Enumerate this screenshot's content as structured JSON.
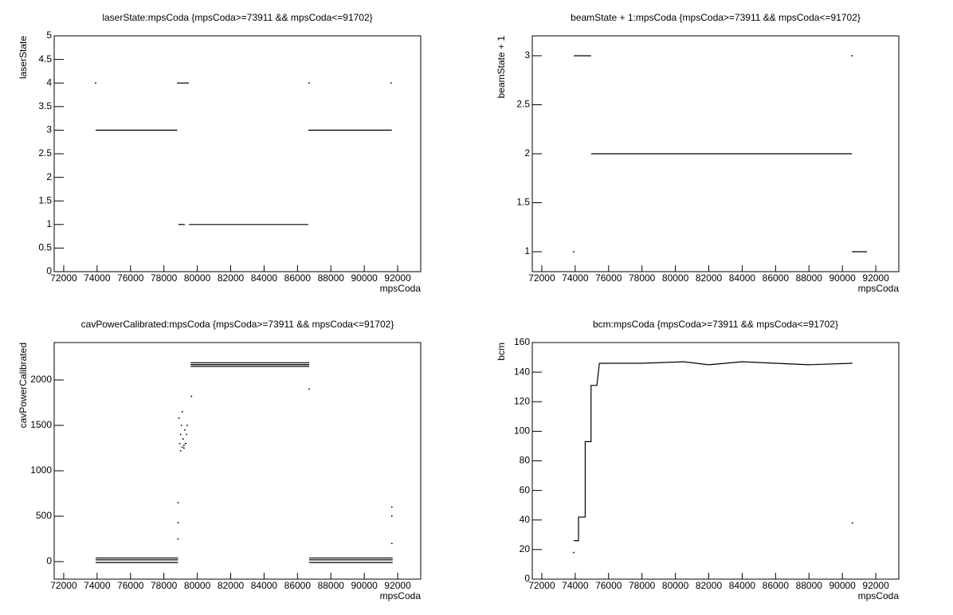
{
  "chart_data": [
    {
      "type": "scatter",
      "title": "laserState:mpsCoda {mpsCoda>=73911 && mpsCoda<=91702}",
      "x_label": "mpsCoda",
      "y_label": "laserState",
      "color": "#000000",
      "xlim": [
        71430,
        93380
      ],
      "xticks": [
        72000,
        74000,
        76000,
        78000,
        80000,
        82000,
        84000,
        86000,
        88000,
        90000,
        92000
      ],
      "ylim": [
        0,
        5
      ],
      "yticks": [
        0,
        0.5,
        1,
        1.5,
        2,
        2.5,
        3,
        3.5,
        4,
        4.5,
        5
      ],
      "segments": [
        {
          "x": [
            73911,
            78800
          ],
          "y": 3
        },
        {
          "x": [
            78780,
            79500
          ],
          "y": 4
        },
        {
          "x": [
            78870,
            79250
          ],
          "y": 1
        },
        {
          "x": [
            79500,
            86650
          ],
          "y": 1
        },
        {
          "x": [
            86650,
            91650
          ],
          "y": 3
        }
      ],
      "points": {
        "x": [
          73911,
          86700,
          91600
        ],
        "y": [
          4,
          4,
          4
        ]
      }
    },
    {
      "type": "scatter",
      "title": "beamState + 1:mpsCoda {mpsCoda>=73911 && mpsCoda<=91702}",
      "x_label": "mpsCoda",
      "y_label": "beamState + 1",
      "color": "#000000",
      "xlim": [
        71430,
        93380
      ],
      "xticks": [
        72000,
        74000,
        76000,
        78000,
        80000,
        82000,
        84000,
        86000,
        88000,
        90000,
        92000
      ],
      "ylim": [
        0.797,
        3.203
      ],
      "yticks": [
        1,
        1.5,
        2,
        2.5,
        3
      ],
      "segments": [
        {
          "x": [
            73911,
            74950
          ],
          "y": 3
        },
        {
          "x": [
            74960,
            90570
          ],
          "y": 2
        },
        {
          "x": [
            90570,
            91470
          ],
          "y": 1
        }
      ],
      "points": {
        "x": [
          73911,
          90570
        ],
        "y": [
          1,
          3
        ]
      }
    },
    {
      "type": "scatter",
      "title": "cavPowerCalibrated:mpsCoda {mpsCoda>=73911 && mpsCoda<=91702}",
      "x_label": "mpsCoda",
      "y_label": "cavPowerCalibrated",
      "color": "#000000",
      "xlim": [
        71430,
        93380
      ],
      "xticks": [
        72000,
        74000,
        76000,
        78000,
        80000,
        82000,
        84000,
        86000,
        88000,
        90000,
        92000
      ],
      "ylim": [
        -193,
        2412
      ],
      "yticks": [
        0,
        500,
        1000,
        1500,
        2000
      ],
      "segments": [
        {
          "x": [
            73911,
            78850
          ],
          "y": 40
        },
        {
          "x": [
            73911,
            78850
          ],
          "y": 20
        },
        {
          "x": [
            73911,
            78850
          ],
          "y": -10
        },
        {
          "x": [
            79600,
            86700
          ],
          "y": 2190
        },
        {
          "x": [
            79600,
            86700
          ],
          "y": 2170
        },
        {
          "x": [
            79600,
            86700
          ],
          "y": 2150
        },
        {
          "x": [
            86700,
            91700
          ],
          "y": 40
        },
        {
          "x": [
            86700,
            91700
          ],
          "y": 20
        },
        {
          "x": [
            86700,
            91700
          ],
          "y": -10
        }
      ],
      "points": {
        "x": [
          78850,
          78850,
          78850,
          78900,
          78950,
          79000,
          79050,
          79100,
          79150,
          79200,
          79250,
          79300,
          79350,
          79400,
          79000,
          79100,
          79200,
          79300,
          79650,
          86700,
          91650,
          91650,
          91650
        ],
        "y": [
          250,
          430,
          650,
          1580,
          1300,
          1400,
          1500,
          1650,
          1350,
          1250,
          1450,
          1300,
          1400,
          1500,
          1220,
          1260,
          1280,
          1300,
          1820,
          1900,
          600,
          500,
          200
        ]
      }
    },
    {
      "type": "scatter",
      "title": "bcm:mpsCoda {mpsCoda>=73911 && mpsCoda<=91702}",
      "x_label": "mpsCoda",
      "y_label": "bcm",
      "color": "#000000",
      "xlim": [
        71430,
        93380
      ],
      "xticks": [
        72000,
        74000,
        76000,
        78000,
        80000,
        82000,
        84000,
        86000,
        88000,
        90000,
        92000
      ],
      "ylim": [
        0,
        160
      ],
      "yticks": [
        0,
        20,
        40,
        60,
        80,
        100,
        120,
        140,
        160
      ],
      "line": {
        "x": [
          73911,
          74200,
          74200,
          74600,
          74600,
          74950,
          74950,
          75300,
          75450,
          78000,
          80500,
          82000,
          84000,
          86000,
          88000,
          90600
        ],
        "y": [
          26,
          26,
          42,
          42,
          93,
          93,
          131,
          131,
          146,
          146,
          147,
          145,
          147,
          146,
          145,
          146
        ]
      },
      "points": {
        "x": [
          73911,
          90600
        ],
        "y": [
          18,
          38
        ]
      }
    }
  ]
}
